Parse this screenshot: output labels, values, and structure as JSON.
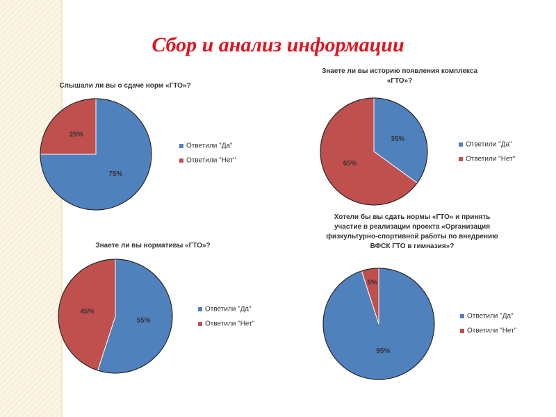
{
  "title": "Сбор и анализ информации",
  "chart_data": [
    {
      "type": "pie",
      "title": "Слышали ли вы о сдаче норм «ГТО»?",
      "categories": [
        "Ответили \"Да\"",
        "Ответили \"Нет\""
      ],
      "values": [
        75,
        25
      ],
      "value_labels": [
        "75%",
        "25%"
      ],
      "colors": [
        "#4f81bd",
        "#c0504d"
      ]
    },
    {
      "type": "pie",
      "title": "Знаете ли вы историю появления комплекса «ГТО»?",
      "categories": [
        "Ответили \"Да\"",
        "Ответили \"Нет\""
      ],
      "values": [
        35,
        65
      ],
      "value_labels": [
        "35%",
        "65%"
      ],
      "colors": [
        "#4f81bd",
        "#c0504d"
      ]
    },
    {
      "type": "pie",
      "title": "Знаете ли вы нормативы «ГТО»?",
      "categories": [
        "Ответили \"Да\"",
        "Ответили \"Нет\""
      ],
      "values": [
        55,
        45
      ],
      "value_labels": [
        "55%",
        "45%"
      ],
      "colors": [
        "#4f81bd",
        "#c0504d"
      ]
    },
    {
      "type": "pie",
      "title": "Хотели бы вы сдать нормы «ГТО» и принять участие в реализации проекта «Организация физкультурно-спортивной работы по внедрению ВФСК ГТО в гимназия»?",
      "categories": [
        "Ответили \"Да\"",
        "Ответили \"Нет\""
      ],
      "values": [
        95,
        5
      ],
      "value_labels": [
        "95%",
        "5%"
      ],
      "colors": [
        "#4f81bd",
        "#c0504d"
      ]
    }
  ]
}
